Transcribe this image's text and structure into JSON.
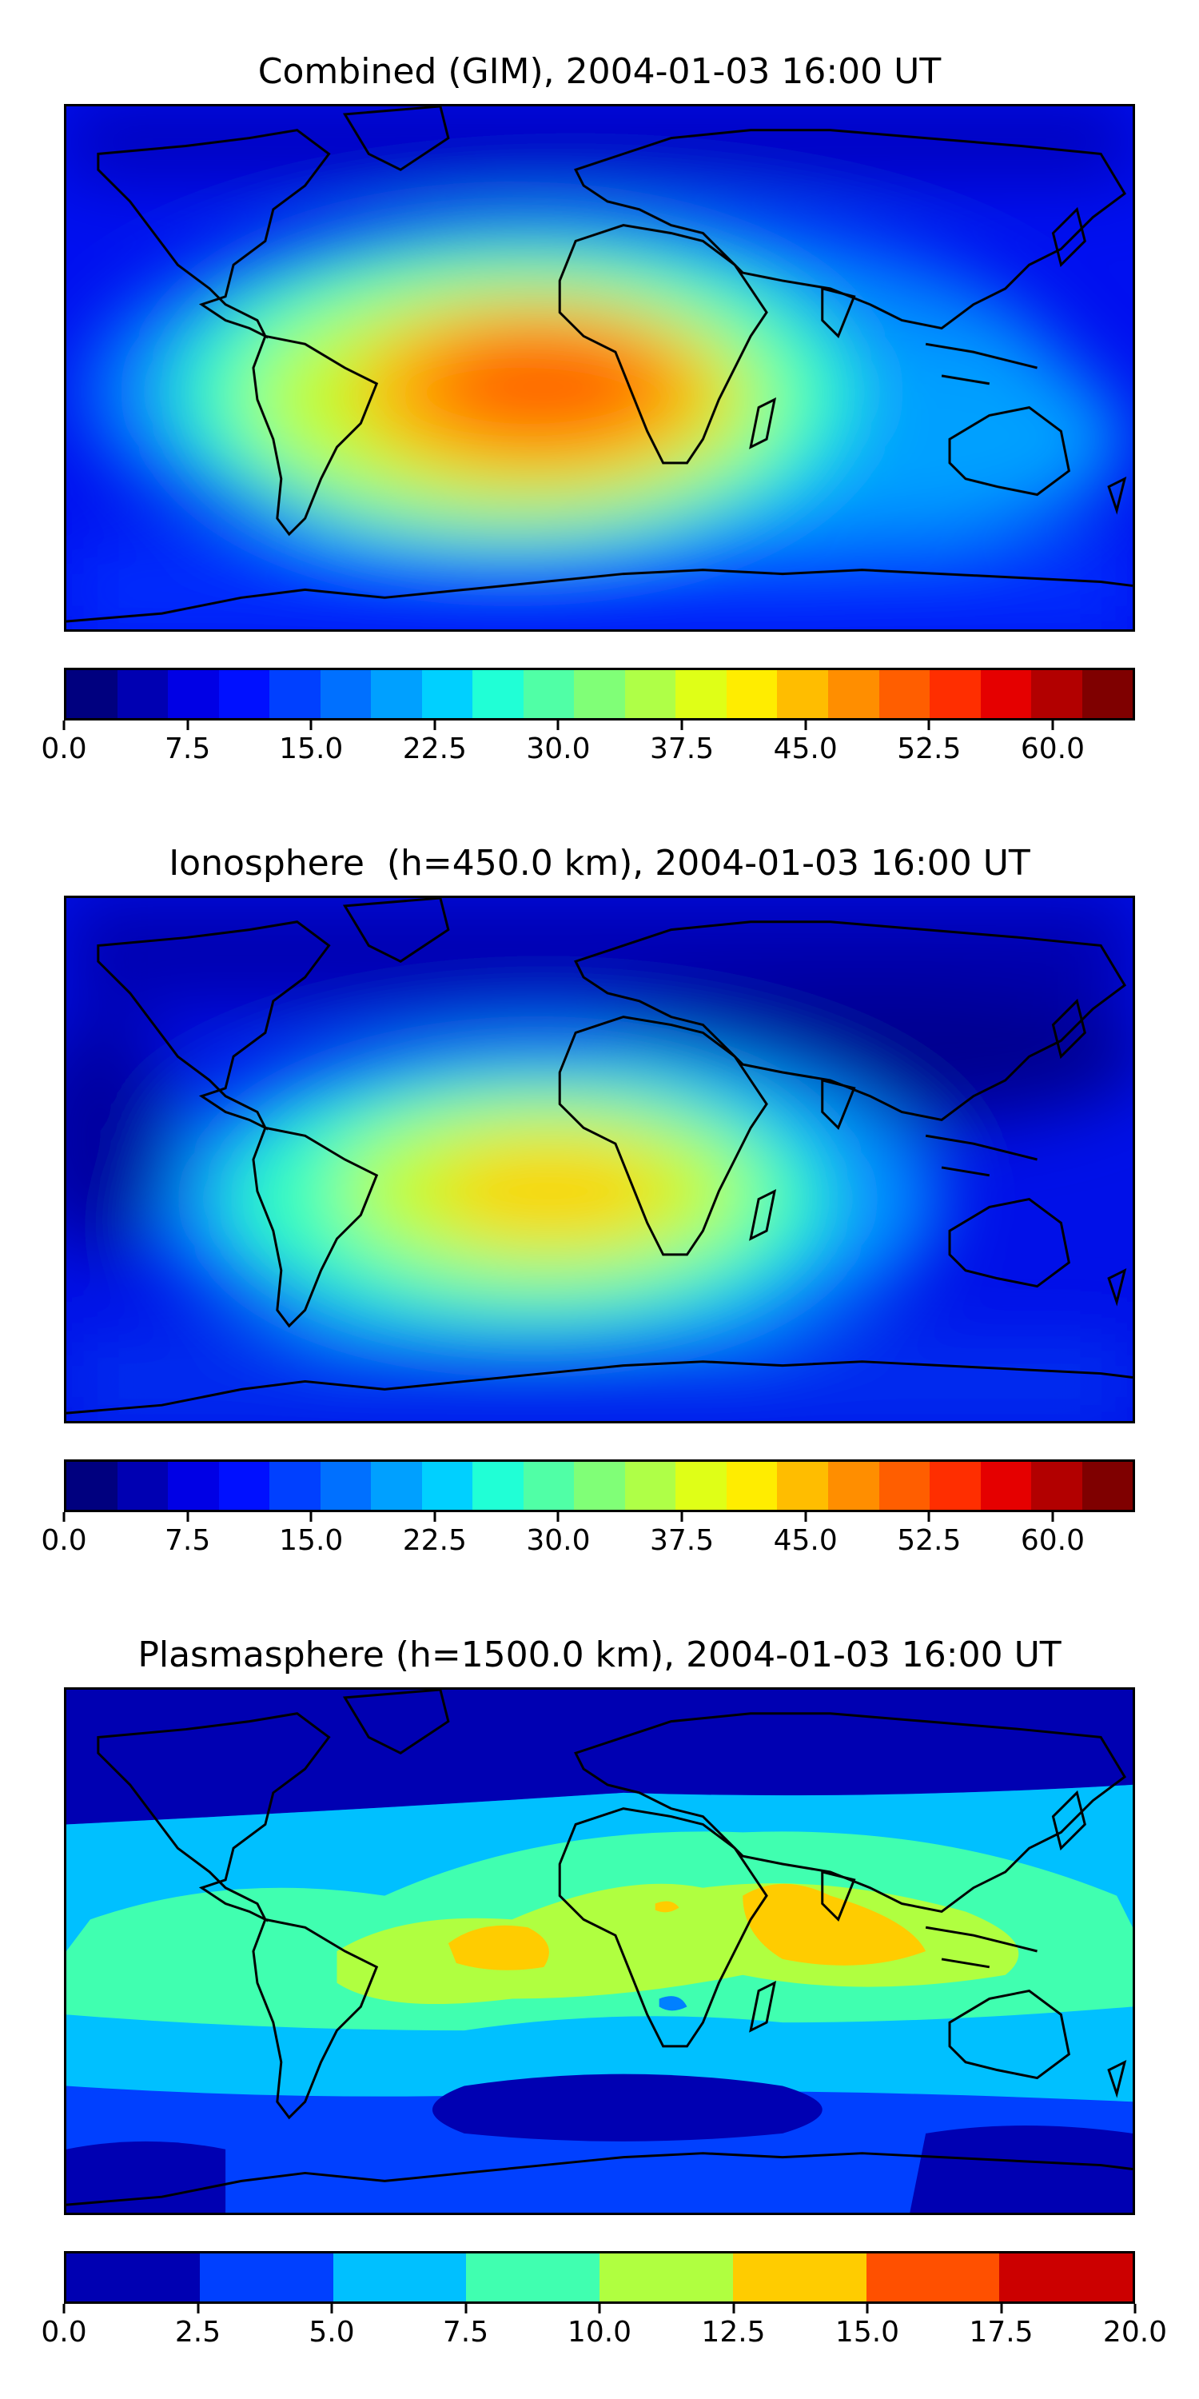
{
  "panels": [
    {
      "id": "combined",
      "title": "Combined (GIM), 2004-01-03 16:00 UT",
      "colorbar": {
        "colors": [
          "#00007f",
          "#0000b2",
          "#0000e5",
          "#0010ff",
          "#0040ff",
          "#0070ff",
          "#00a0ff",
          "#00d0ff",
          "#20ffd6",
          "#50ffa6",
          "#80ff77",
          "#afff47",
          "#dfff17",
          "#ffed00",
          "#ffbd00",
          "#ff8e00",
          "#ff5e00",
          "#ff2e00",
          "#e50000",
          "#b20000",
          "#7f0000"
        ],
        "range": [
          0,
          65
        ],
        "ticks": [
          "0.0",
          "7.5",
          "15.0",
          "22.5",
          "30.0",
          "37.5",
          "45.0",
          "52.5",
          "60.0"
        ],
        "tick_values": [
          0,
          7.5,
          15,
          22.5,
          30,
          37.5,
          45,
          52.5,
          60
        ]
      }
    },
    {
      "id": "ionosphere",
      "title": "Ionosphere  (h=450.0 km), 2004-01-03 16:00 UT",
      "colorbar": {
        "colors": [
          "#00007f",
          "#0000b2",
          "#0000e5",
          "#0010ff",
          "#0040ff",
          "#0070ff",
          "#00a0ff",
          "#00d0ff",
          "#20ffd6",
          "#50ffa6",
          "#80ff77",
          "#afff47",
          "#dfff17",
          "#ffed00",
          "#ffbd00",
          "#ff8e00",
          "#ff5e00",
          "#ff2e00",
          "#e50000",
          "#b20000",
          "#7f0000"
        ],
        "range": [
          0,
          65
        ],
        "ticks": [
          "0.0",
          "7.5",
          "15.0",
          "22.5",
          "30.0",
          "37.5",
          "45.0",
          "52.5",
          "60.0"
        ],
        "tick_values": [
          0,
          7.5,
          15,
          22.5,
          30,
          37.5,
          45,
          52.5,
          60
        ]
      }
    },
    {
      "id": "plasmasphere",
      "title": "Plasmasphere (h=1500.0 km), 2004-01-03 16:00 UT",
      "colorbar": {
        "colors": [
          "#0000b2",
          "#0040ff",
          "#00c0ff",
          "#40ffb0",
          "#b0ff40",
          "#ffcc00",
          "#ff5000",
          "#cc0000"
        ],
        "range": [
          0,
          20
        ],
        "ticks": [
          "0.0",
          "2.5",
          "5.0",
          "7.5",
          "10.0",
          "12.5",
          "15.0",
          "17.5",
          "20.0"
        ],
        "tick_values": [
          0,
          2.5,
          5,
          7.5,
          10,
          12.5,
          15,
          17.5,
          20
        ]
      }
    }
  ]
}
